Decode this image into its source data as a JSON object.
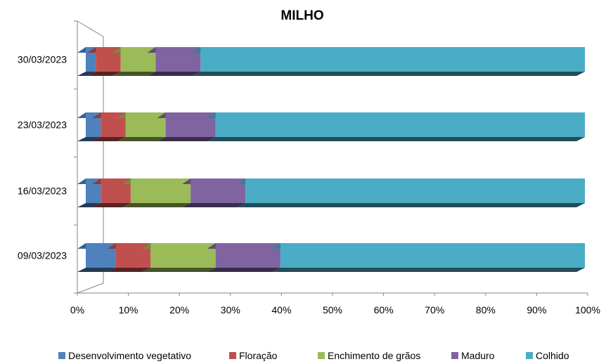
{
  "chart_data": {
    "type": "bar",
    "orientation": "horizontal",
    "stacked": "percent",
    "title": "MILHO",
    "categories": [
      "09/03/2023",
      "16/03/2023",
      "23/03/2023",
      "30/03/2023"
    ],
    "series": [
      {
        "name": "Desenvolvimento vegetativo",
        "color": "#4F81BD",
        "values": [
          6,
          3,
          3,
          2
        ]
      },
      {
        "name": "Floração",
        "color": "#C0504D",
        "values": [
          7,
          6,
          5,
          5
        ]
      },
      {
        "name": "Enchimento de grãos",
        "color": "#9BBB59",
        "values": [
          13,
          12,
          8,
          7
        ]
      },
      {
        "name": "Maduro",
        "color": "#8064A2",
        "values": [
          13,
          11,
          10,
          9
        ]
      },
      {
        "name": "Colhido",
        "color": "#4BACC6",
        "values": [
          61,
          68,
          74,
          77
        ]
      }
    ],
    "x_ticks": [
      "0%",
      "10%",
      "20%",
      "30%",
      "40%",
      "50%",
      "60%",
      "70%",
      "80%",
      "90%",
      "100%"
    ],
    "xlim": [
      0,
      100
    ],
    "grid": false,
    "legend": "bottom"
  }
}
